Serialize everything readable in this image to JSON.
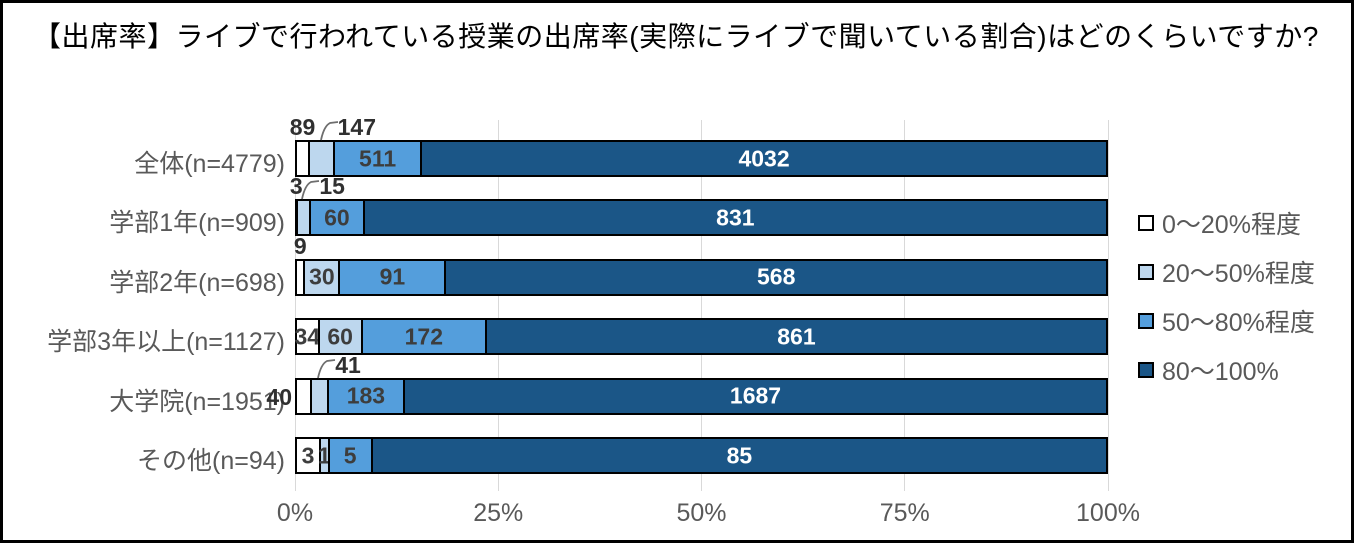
{
  "title": "【出席率】ライブで行われている授業の出席率(実際にライブで聞いている割合)はどのくらいですか?",
  "colors": {
    "segment_fills": [
      "#FFFFFF",
      "#BDD7EE",
      "#549EDC",
      "#1B5687"
    ],
    "segment_border": "#000000",
    "gridline": "#D9D9D9",
    "label_inside_light": "#3D3D3D",
    "label_inside_dark": "#FFFFFF",
    "label_outside": "#303030",
    "axis_text": "#595959",
    "leader_line": "#6E6E6E"
  },
  "chart_data": {
    "type": "bar",
    "orientation": "horizontal",
    "stacked": "100%",
    "title": "【出席率】ライブで行われている授業の出席率(実際にライブで聞いている割合)はどのくらいですか?",
    "categories": [
      "全体(n=4779)",
      "学部1年(n=909)",
      "学部2年(n=698)",
      "学部3年以上(n=1127)",
      "大学院(n=1951)",
      "その他(n=94)"
    ],
    "totals": [
      4779,
      909,
      698,
      1127,
      1951,
      94
    ],
    "series": [
      {
        "name": "0〜20%程度",
        "values": [
          89,
          3,
          9,
          34,
          40,
          3
        ]
      },
      {
        "name": "20〜50%程度",
        "values": [
          147,
          15,
          30,
          60,
          41,
          1
        ]
      },
      {
        "name": "50〜80%程度",
        "values": [
          511,
          60,
          91,
          172,
          183,
          5
        ]
      },
      {
        "name": "80〜100%",
        "values": [
          4032,
          831,
          568,
          861,
          1687,
          85
        ]
      }
    ],
    "x_ticks": [
      "0%",
      "25%",
      "50%",
      "75%",
      "100%"
    ],
    "xlim": [
      0,
      100
    ],
    "grid": true,
    "legend_position": "right",
    "label_placements": [
      [
        "above",
        "callout",
        "inside",
        "inside"
      ],
      [
        "above",
        "callout",
        "inside",
        "inside"
      ],
      [
        "above",
        "inside",
        "inside",
        "inside"
      ],
      [
        "inside",
        "inside",
        "inside",
        "inside"
      ],
      [
        "left",
        "callout",
        "inside",
        "inside"
      ],
      [
        "inside",
        "inside",
        "inside",
        "inside"
      ]
    ]
  }
}
